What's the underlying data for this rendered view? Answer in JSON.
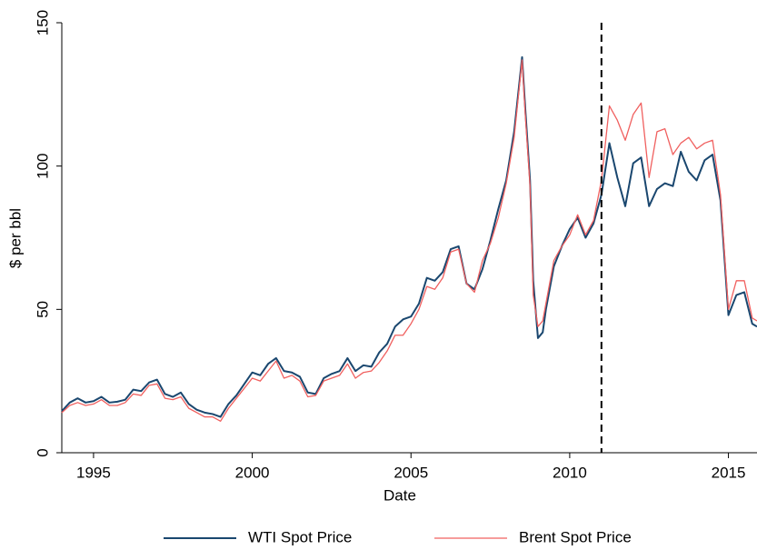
{
  "chart_data": {
    "type": "line",
    "x_label": "Date",
    "y_label": "$ per bbl",
    "x": [
      1994.0,
      1994.25,
      1994.5,
      1994.75,
      1995.0,
      1995.25,
      1995.5,
      1995.75,
      1996.0,
      1996.25,
      1996.5,
      1996.75,
      1997.0,
      1997.25,
      1997.5,
      1997.75,
      1998.0,
      1998.25,
      1998.5,
      1998.75,
      1999.0,
      1999.25,
      1999.5,
      1999.75,
      2000.0,
      2000.25,
      2000.5,
      2000.75,
      2001.0,
      2001.25,
      2001.5,
      2001.75,
      2002.0,
      2002.25,
      2002.5,
      2002.75,
      2003.0,
      2003.25,
      2003.5,
      2003.75,
      2004.0,
      2004.25,
      2004.5,
      2004.75,
      2005.0,
      2005.25,
      2005.5,
      2005.75,
      2006.0,
      2006.25,
      2006.5,
      2006.75,
      2007.0,
      2007.25,
      2007.5,
      2007.75,
      2008.0,
      2008.25,
      2008.5,
      2008.6,
      2008.75,
      2008.85,
      2009.0,
      2009.15,
      2009.25,
      2009.5,
      2009.75,
      2010.0,
      2010.25,
      2010.5,
      2010.75,
      2011.0,
      2011.25,
      2011.5,
      2011.75,
      2012.0,
      2012.25,
      2012.5,
      2012.75,
      2013.0,
      2013.25,
      2013.5,
      2013.75,
      2014.0,
      2014.25,
      2014.5,
      2014.75,
      2015.0,
      2015.25,
      2015.5,
      2015.75,
      2015.9
    ],
    "series": [
      {
        "name": "WTI Spot Price",
        "color": "#1a476f",
        "values": [
          14.5,
          17.5,
          19,
          17.5,
          18,
          19.5,
          17.5,
          17.8,
          18.5,
          22,
          21.5,
          24.5,
          25.5,
          20.5,
          19.5,
          21,
          17,
          15,
          14,
          13.5,
          12.5,
          17,
          20,
          24,
          28,
          27,
          31,
          33,
          28.5,
          28,
          26.5,
          21,
          20.5,
          26,
          27.5,
          28.5,
          33,
          28.5,
          30.5,
          30,
          35,
          38,
          44,
          46.5,
          47.5,
          52,
          61,
          60,
          63,
          71,
          72,
          59,
          57,
          64,
          74,
          85,
          95,
          112,
          138,
          120,
          95,
          60,
          40,
          42,
          50,
          65,
          72,
          78,
          82,
          75,
          80,
          90,
          108,
          96,
          86,
          101,
          103,
          86,
          92,
          94,
          93,
          105,
          98,
          95,
          102,
          104,
          88,
          48,
          55,
          56,
          45,
          44
        ]
      },
      {
        "name": "Brent Spot Price",
        "color": "#f0605f",
        "values": [
          14,
          16.5,
          17.5,
          16.5,
          17,
          18.5,
          16.5,
          16.5,
          17.5,
          20.5,
          20,
          23.5,
          24,
          19,
          18.5,
          19.5,
          15.5,
          14,
          12.5,
          12.5,
          11,
          15.5,
          19,
          22.5,
          26,
          25,
          28.5,
          32,
          26,
          27,
          25,
          19.5,
          20,
          25,
          26,
          27,
          31,
          26,
          28,
          28.5,
          31.5,
          35.5,
          41,
          41,
          45,
          50,
          58,
          57,
          61,
          70,
          71,
          59,
          56,
          67,
          73,
          82,
          94,
          110,
          137,
          118,
          93,
          55,
          44,
          46,
          52,
          67,
          72,
          76,
          83,
          76,
          81,
          95,
          121,
          116,
          109,
          118,
          122,
          96,
          112,
          113,
          104,
          108,
          110,
          106,
          108,
          109,
          90,
          50,
          60,
          60,
          47,
          46
        ]
      }
    ],
    "xlim": [
      1994,
      2015.9
    ],
    "xticks": [
      1995,
      2000,
      2005,
      2010,
      2015
    ],
    "ylim": [
      0,
      150
    ],
    "yticks": [
      0,
      50,
      100,
      150
    ],
    "vline": 2011,
    "legend": "bottom"
  }
}
